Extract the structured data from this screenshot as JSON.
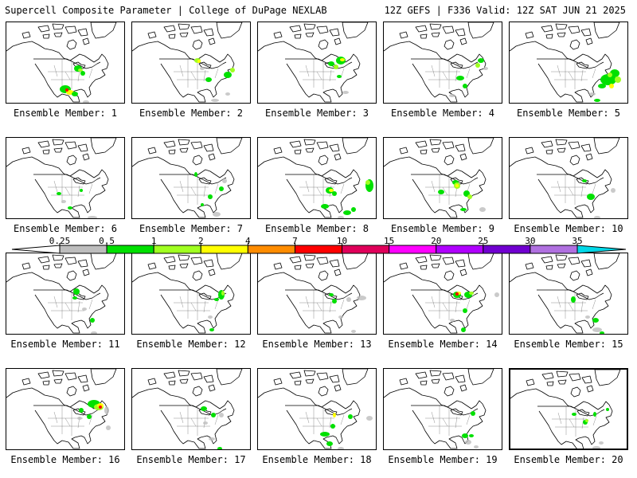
{
  "header": {
    "title": "Supercell Composite Parameter | College of DuPage NEXLAB",
    "run_info": "12Z GEFS | F336 Valid: 12Z SAT JUN 21 2025"
  },
  "colorbar": {
    "levels": [
      "0.25",
      "0.5",
      "1",
      "2",
      "4",
      "7",
      "10",
      "15",
      "20",
      "25",
      "30",
      "35"
    ],
    "colors": [
      "#ffffff",
      "#bdbdbd",
      "#00e000",
      "#a0ff20",
      "#ffff00",
      "#ff8c00",
      "#ff0000",
      "#e0005a",
      "#ff00ff",
      "#b000ff",
      "#7000d0",
      "#b070e0",
      "#00d8e8"
    ]
  },
  "members": [
    {
      "label": "Ensemble Member: 1"
    },
    {
      "label": "Ensemble Member: 2"
    },
    {
      "label": "Ensemble Member: 3"
    },
    {
      "label": "Ensemble Member: 4"
    },
    {
      "label": "Ensemble Member: 5"
    },
    {
      "label": "Ensemble Member: 6"
    },
    {
      "label": "Ensemble Member: 7"
    },
    {
      "label": "Ensemble Member: 8"
    },
    {
      "label": "Ensemble Member: 9"
    },
    {
      "label": "Ensemble Member: 10"
    },
    {
      "label": "Ensemble Member: 11"
    },
    {
      "label": "Ensemble Member: 12"
    },
    {
      "label": "Ensemble Member: 13"
    },
    {
      "label": "Ensemble Member: 14"
    },
    {
      "label": "Ensemble Member: 15"
    },
    {
      "label": "Ensemble Member: 16"
    },
    {
      "label": "Ensemble Member: 17"
    },
    {
      "label": "Ensemble Member: 18"
    },
    {
      "label": "Ensemble Member: 19"
    },
    {
      "label": "Ensemble Member: 20"
    }
  ],
  "selected_member": 20
}
